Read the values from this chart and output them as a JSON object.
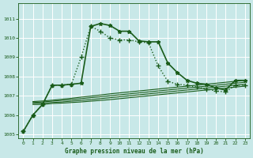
{
  "title": "Graphe pression niveau de la mer (hPa)",
  "background_color": "#c8e8e8",
  "grid_color": "#ffffff",
  "line_color": "#1a5c1a",
  "xlim": [
    -0.5,
    23.5
  ],
  "ylim": [
    1004.8,
    1011.8
  ],
  "yticks": [
    1005,
    1006,
    1007,
    1008,
    1009,
    1010,
    1011
  ],
  "xticks": [
    0,
    1,
    2,
    3,
    4,
    5,
    6,
    7,
    8,
    9,
    10,
    11,
    12,
    13,
    14,
    15,
    16,
    17,
    18,
    19,
    20,
    21,
    22,
    23
  ],
  "series": [
    {
      "x": [
        0,
        1,
        2,
        3,
        4,
        5,
        6,
        7,
        8,
        9,
        10,
        11,
        12,
        13,
        14,
        15,
        16,
        17,
        18,
        19,
        20,
        21,
        22,
        23
      ],
      "y": [
        1005.15,
        1006.0,
        1006.55,
        1007.55,
        1007.55,
        1007.6,
        1007.65,
        1010.6,
        1010.75,
        1010.65,
        1010.35,
        1010.35,
        1009.85,
        1009.8,
        1009.8,
        1008.7,
        1008.2,
        1007.8,
        1007.65,
        1007.6,
        1007.4,
        1007.3,
        1007.8,
        1007.8
      ],
      "marker": "*",
      "markersize": 3.5,
      "linewidth": 1.2,
      "linestyle": "solid"
    },
    {
      "x": [
        0,
        1,
        2,
        3,
        4,
        5,
        6,
        7,
        8,
        9,
        10,
        11,
        12,
        13,
        14,
        15,
        16,
        17,
        18,
        19,
        20,
        21,
        22,
        23
      ],
      "y": [
        1005.15,
        1006.0,
        1006.55,
        1007.55,
        1007.55,
        1007.6,
        1009.0,
        1010.6,
        1010.35,
        1010.0,
        1009.9,
        1009.9,
        1009.8,
        1009.75,
        1008.55,
        1007.75,
        1007.6,
        1007.55,
        1007.45,
        1007.35,
        1007.25,
        1007.2,
        1007.55,
        1007.55
      ],
      "marker": "+",
      "markersize": 4,
      "linewidth": 1.0,
      "linestyle": "dotted"
    },
    {
      "x": [
        1,
        2,
        3,
        4,
        5,
        6,
        7,
        8,
        9,
        10,
        11,
        12,
        13,
        14,
        15,
        16,
        17,
        18,
        19,
        20,
        21,
        22,
        23
      ],
      "y": [
        1006.55,
        1006.55,
        1006.6,
        1006.62,
        1006.65,
        1006.68,
        1006.72,
        1006.76,
        1006.8,
        1006.85,
        1006.9,
        1006.95,
        1007.0,
        1007.05,
        1007.1,
        1007.15,
        1007.2,
        1007.25,
        1007.3,
        1007.35,
        1007.4,
        1007.45,
        1007.5
      ],
      "marker": null,
      "markersize": 0,
      "linewidth": 0.8,
      "linestyle": "solid"
    },
    {
      "x": [
        1,
        2,
        3,
        4,
        5,
        6,
        7,
        8,
        9,
        10,
        11,
        12,
        13,
        14,
        15,
        16,
        17,
        18,
        19,
        20,
        21,
        22,
        23
      ],
      "y": [
        1006.6,
        1006.62,
        1006.65,
        1006.68,
        1006.72,
        1006.76,
        1006.8,
        1006.85,
        1006.9,
        1006.95,
        1007.0,
        1007.05,
        1007.1,
        1007.15,
        1007.2,
        1007.25,
        1007.3,
        1007.35,
        1007.4,
        1007.45,
        1007.5,
        1007.55,
        1007.6
      ],
      "marker": null,
      "markersize": 0,
      "linewidth": 0.8,
      "linestyle": "solid"
    },
    {
      "x": [
        1,
        2,
        3,
        4,
        5,
        6,
        7,
        8,
        9,
        10,
        11,
        12,
        13,
        14,
        15,
        16,
        17,
        18,
        19,
        20,
        21,
        22,
        23
      ],
      "y": [
        1006.65,
        1006.68,
        1006.72,
        1006.76,
        1006.8,
        1006.85,
        1006.9,
        1006.95,
        1007.0,
        1007.05,
        1007.1,
        1007.15,
        1007.2,
        1007.25,
        1007.3,
        1007.35,
        1007.4,
        1007.45,
        1007.5,
        1007.55,
        1007.6,
        1007.65,
        1007.7
      ],
      "marker": null,
      "markersize": 0,
      "linewidth": 0.8,
      "linestyle": "solid"
    },
    {
      "x": [
        1,
        2,
        3,
        4,
        5,
        6,
        7,
        8,
        9,
        10,
        11,
        12,
        13,
        14,
        15,
        16,
        17,
        18,
        19,
        20,
        21,
        22,
        23
      ],
      "y": [
        1006.7,
        1006.73,
        1006.77,
        1006.82,
        1006.87,
        1006.93,
        1006.98,
        1007.04,
        1007.1,
        1007.15,
        1007.2,
        1007.25,
        1007.3,
        1007.35,
        1007.4,
        1007.45,
        1007.5,
        1007.55,
        1007.6,
        1007.65,
        1007.7,
        1007.75,
        1007.8
      ],
      "marker": null,
      "markersize": 0,
      "linewidth": 0.8,
      "linestyle": "solid"
    }
  ]
}
